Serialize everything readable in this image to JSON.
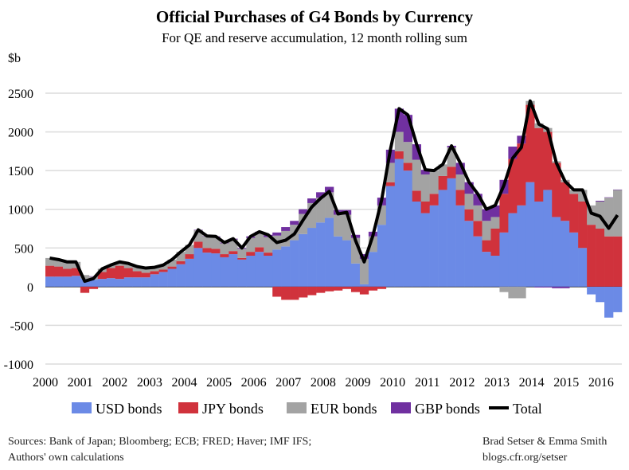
{
  "chart_data": {
    "type": "bar",
    "stacked": true,
    "title": "Official Purchases of G4 Bonds by Currency",
    "subtitle": "For QE and reserve accumulation, 12 month rolling sum",
    "ylabel": "$b",
    "ylim": [
      -1000,
      2500
    ],
    "yticks": [
      "2500",
      "2000",
      "1500",
      "1000",
      "500",
      "0",
      "-500",
      "-1000"
    ],
    "ytick_values": [
      2500,
      2000,
      1500,
      1000,
      500,
      0,
      -500,
      -1000
    ],
    "xticks": [
      "2000",
      "2001",
      "2002",
      "2003",
      "2004",
      "2005",
      "2006",
      "2007",
      "2008",
      "2009",
      "2010",
      "2011",
      "2012",
      "2013",
      "2014",
      "2015",
      "2016"
    ],
    "xlim": [
      2000,
      2016.6
    ],
    "grid": true,
    "legend_position": "bottom",
    "x": [
      "2000Q1",
      "2000Q2",
      "2000Q3",
      "2000Q4",
      "2001Q1",
      "2001Q2",
      "2001Q3",
      "2001Q4",
      "2002Q1",
      "2002Q2",
      "2002Q3",
      "2002Q4",
      "2003Q1",
      "2003Q2",
      "2003Q3",
      "2003Q4",
      "2004Q1",
      "2004Q2",
      "2004Q3",
      "2004Q4",
      "2005Q1",
      "2005Q2",
      "2005Q3",
      "2005Q4",
      "2006Q1",
      "2006Q2",
      "2006Q3",
      "2006Q4",
      "2007Q1",
      "2007Q2",
      "2007Q3",
      "2007Q4",
      "2008Q1",
      "2008Q2",
      "2008Q3",
      "2008Q4",
      "2009Q1",
      "2009Q2",
      "2009Q3",
      "2009Q4",
      "2010Q1",
      "2010Q2",
      "2010Q3",
      "2010Q4",
      "2011Q1",
      "2011Q2",
      "2011Q3",
      "2011Q4",
      "2012Q1",
      "2012Q2",
      "2012Q3",
      "2012Q4",
      "2013Q1",
      "2013Q2",
      "2013Q3",
      "2013Q4",
      "2014Q1",
      "2014Q2",
      "2014Q3",
      "2014Q4",
      "2015Q1",
      "2015Q2",
      "2015Q3",
      "2015Q4",
      "2016Q1",
      "2016Q2"
    ],
    "series": [
      {
        "name": "USD bonds",
        "color": "#6b8ae6",
        "values": [
          130,
          130,
          130,
          140,
          100,
          90,
          100,
          110,
          100,
          120,
          120,
          120,
          160,
          190,
          230,
          290,
          360,
          500,
          440,
          430,
          380,
          420,
          350,
          400,
          450,
          400,
          480,
          520,
          600,
          680,
          760,
          830,
          890,
          650,
          600,
          300,
          30,
          450,
          800,
          1300,
          1650,
          1500,
          1100,
          950,
          1050,
          1250,
          1400,
          1050,
          850,
          650,
          450,
          400,
          700,
          950,
          1050,
          1350,
          1100,
          1250,
          900,
          850,
          700,
          500,
          -100,
          -200,
          -400,
          -330
        ]
      },
      {
        "name": "JPY bonds",
        "color": "#d0323c",
        "values": [
          140,
          130,
          100,
          100,
          -80,
          -30,
          90,
          130,
          170,
          120,
          80,
          60,
          40,
          30,
          30,
          40,
          60,
          80,
          60,
          60,
          40,
          40,
          20,
          50,
          60,
          40,
          -130,
          -170,
          -170,
          -140,
          -110,
          -80,
          -60,
          -50,
          -30,
          -70,
          -100,
          -50,
          -30,
          50,
          100,
          100,
          140,
          150,
          150,
          180,
          150,
          200,
          150,
          200,
          150,
          350,
          500,
          700,
          800,
          1000,
          950,
          750,
          700,
          500,
          500,
          600,
          800,
          750,
          650,
          650
        ]
      },
      {
        "name": "EUR bonds",
        "color": "#a3a3a3",
        "values": [
          100,
          90,
          90,
          80,
          50,
          40,
          40,
          40,
          50,
          60,
          60,
          60,
          50,
          60,
          90,
          120,
          120,
          150,
          150,
          150,
          140,
          150,
          120,
          180,
          180,
          200,
          180,
          200,
          200,
          260,
          320,
          320,
          330,
          280,
          330,
          330,
          330,
          200,
          250,
          250,
          250,
          270,
          400,
          350,
          300,
          150,
          250,
          200,
          200,
          200,
          250,
          150,
          -70,
          -150,
          -150,
          50,
          60,
          50,
          20,
          30,
          50,
          150,
          250,
          350,
          500,
          600
        ]
      },
      {
        "name": "GBP bonds",
        "color": "#7030a0",
        "values": [
          0,
          0,
          0,
          0,
          0,
          5,
          0,
          0,
          0,
          0,
          0,
          0,
          0,
          0,
          0,
          0,
          0,
          5,
          5,
          10,
          10,
          10,
          10,
          20,
          20,
          30,
          40,
          50,
          50,
          60,
          60,
          70,
          70,
          60,
          60,
          40,
          60,
          60,
          100,
          170,
          300,
          350,
          200,
          60,
          0,
          0,
          20,
          150,
          150,
          150,
          150,
          150,
          180,
          160,
          100,
          0,
          -10,
          -10,
          -20,
          -20,
          0,
          0,
          0,
          10,
          5,
          5
        ]
      }
    ],
    "total": {
      "name": "Total",
      "color": "#000000"
    }
  },
  "sources": [
    "Sources: Bank of Japan; Bloomberg; ECB; FRED; Haver; IMF IFS;",
    "Authors' own calculations"
  ],
  "credits": [
    "Brad Setser & Emma Smith",
    "blogs.cfr.org/setser"
  ]
}
